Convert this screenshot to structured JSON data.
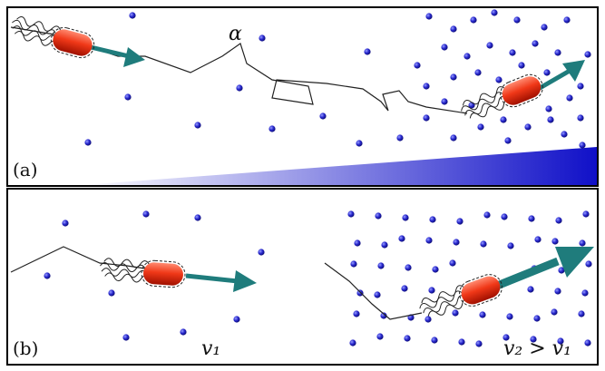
{
  "panel_a": {
    "label": "(a)",
    "annotation": "α"
  },
  "panel_b": {
    "label": "(b)",
    "left_label": "v₁",
    "right_label": "v₂ > v₁"
  }
}
